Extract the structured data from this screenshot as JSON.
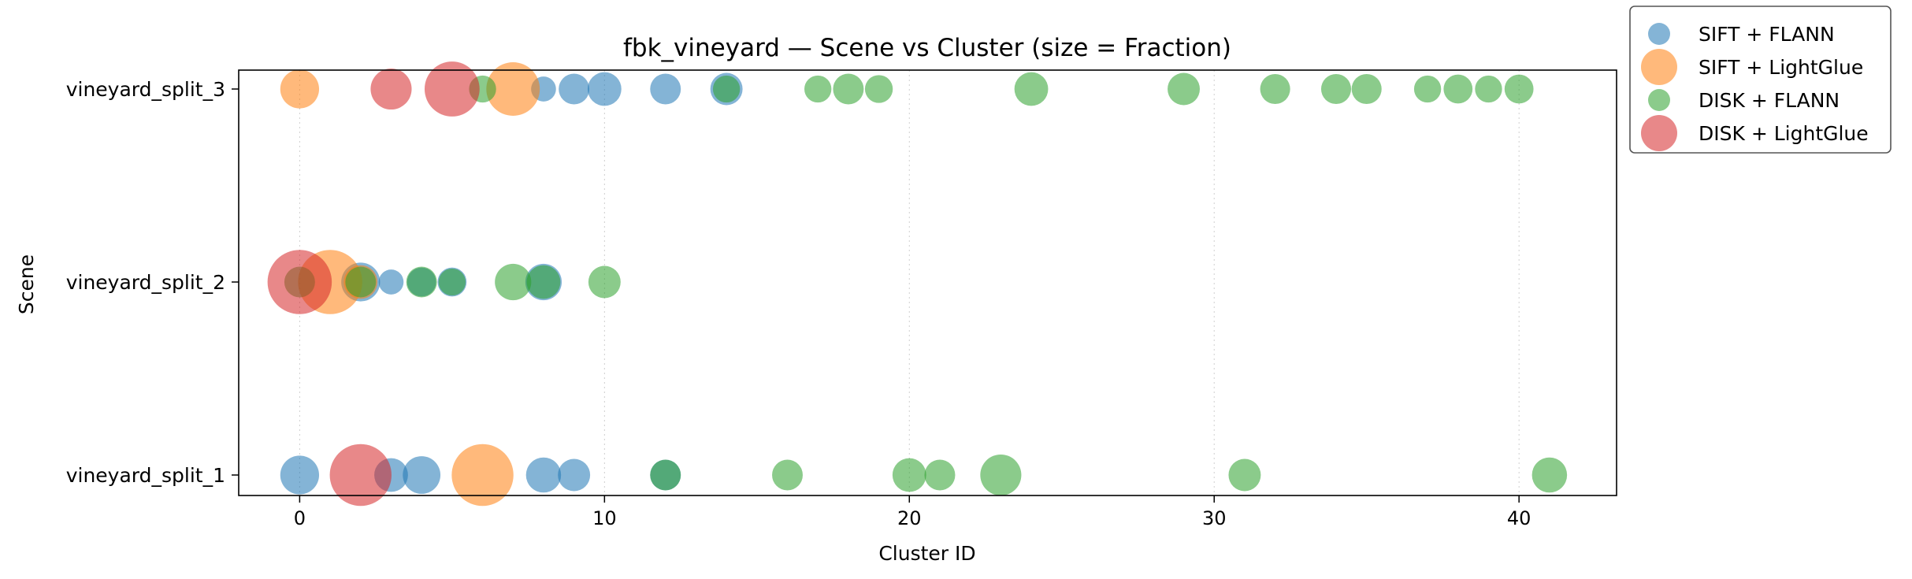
{
  "chart_data": {
    "type": "scatter",
    "title": "fbk_vineyard — Scene vs Cluster (size = Fraction)",
    "xlabel": "Cluster ID",
    "ylabel": "Scene",
    "xlim": [
      -2,
      43.2
    ],
    "xticks": [
      0,
      10,
      20,
      30,
      40
    ],
    "categories": [
      "vineyard_split_1",
      "vineyard_split_2",
      "vineyard_split_3"
    ],
    "grid": "vertical dotted",
    "legend_position": "outside top-right",
    "series": [
      {
        "name": "SIFT + FLANN",
        "color": "#1f77b4",
        "points": [
          {
            "x": 0,
            "y": "vineyard_split_1",
            "size": 0.06
          },
          {
            "x": 3,
            "y": "vineyard_split_1",
            "size": 0.04
          },
          {
            "x": 4,
            "y": "vineyard_split_1",
            "size": 0.055
          },
          {
            "x": 8,
            "y": "vineyard_split_1",
            "size": 0.045
          },
          {
            "x": 9,
            "y": "vineyard_split_1",
            "size": 0.035
          },
          {
            "x": 12,
            "y": "vineyard_split_1",
            "size": 0.03
          },
          {
            "x": 2,
            "y": "vineyard_split_2",
            "size": 0.06
          },
          {
            "x": 3,
            "y": "vineyard_split_2",
            "size": 0.015
          },
          {
            "x": 4,
            "y": "vineyard_split_2",
            "size": 0.025
          },
          {
            "x": 5,
            "y": "vineyard_split_2",
            "size": 0.025
          },
          {
            "x": 8,
            "y": "vineyard_split_2",
            "size": 0.05
          },
          {
            "x": 8,
            "y": "vineyard_split_3",
            "size": 0.015
          },
          {
            "x": 9,
            "y": "vineyard_split_3",
            "size": 0.03
          },
          {
            "x": 10,
            "y": "vineyard_split_3",
            "size": 0.04
          },
          {
            "x": 12,
            "y": "vineyard_split_3",
            "size": 0.03
          },
          {
            "x": 14,
            "y": "vineyard_split_3",
            "size": 0.035
          }
        ]
      },
      {
        "name": "SIFT + LightGlue",
        "color": "#ff7f0e",
        "points": [
          {
            "x": 6,
            "y": "vineyard_split_1",
            "size": 0.2
          },
          {
            "x": 1,
            "y": "vineyard_split_2",
            "size": 0.22
          },
          {
            "x": 2,
            "y": "vineyard_split_2",
            "size": 0.04
          },
          {
            "x": 0,
            "y": "vineyard_split_3",
            "size": 0.06
          },
          {
            "x": 7,
            "y": "vineyard_split_3",
            "size": 0.14
          }
        ]
      },
      {
        "name": "DISK + FLANN",
        "color": "#2ca02c",
        "points": [
          {
            "x": 12,
            "y": "vineyard_split_1",
            "size": 0.03
          },
          {
            "x": 16,
            "y": "vineyard_split_1",
            "size": 0.03
          },
          {
            "x": 20,
            "y": "vineyard_split_1",
            "size": 0.04
          },
          {
            "x": 21,
            "y": "vineyard_split_1",
            "size": 0.03
          },
          {
            "x": 23,
            "y": "vineyard_split_1",
            "size": 0.07
          },
          {
            "x": 31,
            "y": "vineyard_split_1",
            "size": 0.035
          },
          {
            "x": 41,
            "y": "vineyard_split_1",
            "size": 0.045
          },
          {
            "x": 0,
            "y": "vineyard_split_2",
            "size": 0.03
          },
          {
            "x": 2,
            "y": "vineyard_split_2",
            "size": 0.03
          },
          {
            "x": 4,
            "y": "vineyard_split_2",
            "size": 0.03
          },
          {
            "x": 5,
            "y": "vineyard_split_2",
            "size": 0.02
          },
          {
            "x": 7,
            "y": "vineyard_split_2",
            "size": 0.05
          },
          {
            "x": 8,
            "y": "vineyard_split_2",
            "size": 0.04
          },
          {
            "x": 10,
            "y": "vineyard_split_2",
            "size": 0.035
          },
          {
            "x": 6,
            "y": "vineyard_split_3",
            "size": 0.02
          },
          {
            "x": 14,
            "y": "vineyard_split_3",
            "size": 0.02
          },
          {
            "x": 17,
            "y": "vineyard_split_3",
            "size": 0.02
          },
          {
            "x": 18,
            "y": "vineyard_split_3",
            "size": 0.03
          },
          {
            "x": 19,
            "y": "vineyard_split_3",
            "size": 0.022
          },
          {
            "x": 24,
            "y": "vineyard_split_3",
            "size": 0.04
          },
          {
            "x": 29,
            "y": "vineyard_split_3",
            "size": 0.035
          },
          {
            "x": 32,
            "y": "vineyard_split_3",
            "size": 0.028
          },
          {
            "x": 34,
            "y": "vineyard_split_3",
            "size": 0.028
          },
          {
            "x": 35,
            "y": "vineyard_split_3",
            "size": 0.028
          },
          {
            "x": 37,
            "y": "vineyard_split_3",
            "size": 0.02
          },
          {
            "x": 38,
            "y": "vineyard_split_3",
            "size": 0.025
          },
          {
            "x": 39,
            "y": "vineyard_split_3",
            "size": 0.02
          },
          {
            "x": 40,
            "y": "vineyard_split_3",
            "size": 0.025
          }
        ]
      },
      {
        "name": "DISK + LightGlue",
        "color": "#d62728",
        "points": [
          {
            "x": 2,
            "y": "vineyard_split_1",
            "size": 0.2
          },
          {
            "x": 0,
            "y": "vineyard_split_2",
            "size": 0.22
          },
          {
            "x": 3,
            "y": "vineyard_split_3",
            "size": 0.07
          },
          {
            "x": 5,
            "y": "vineyard_split_3",
            "size": 0.15
          }
        ]
      }
    ]
  }
}
